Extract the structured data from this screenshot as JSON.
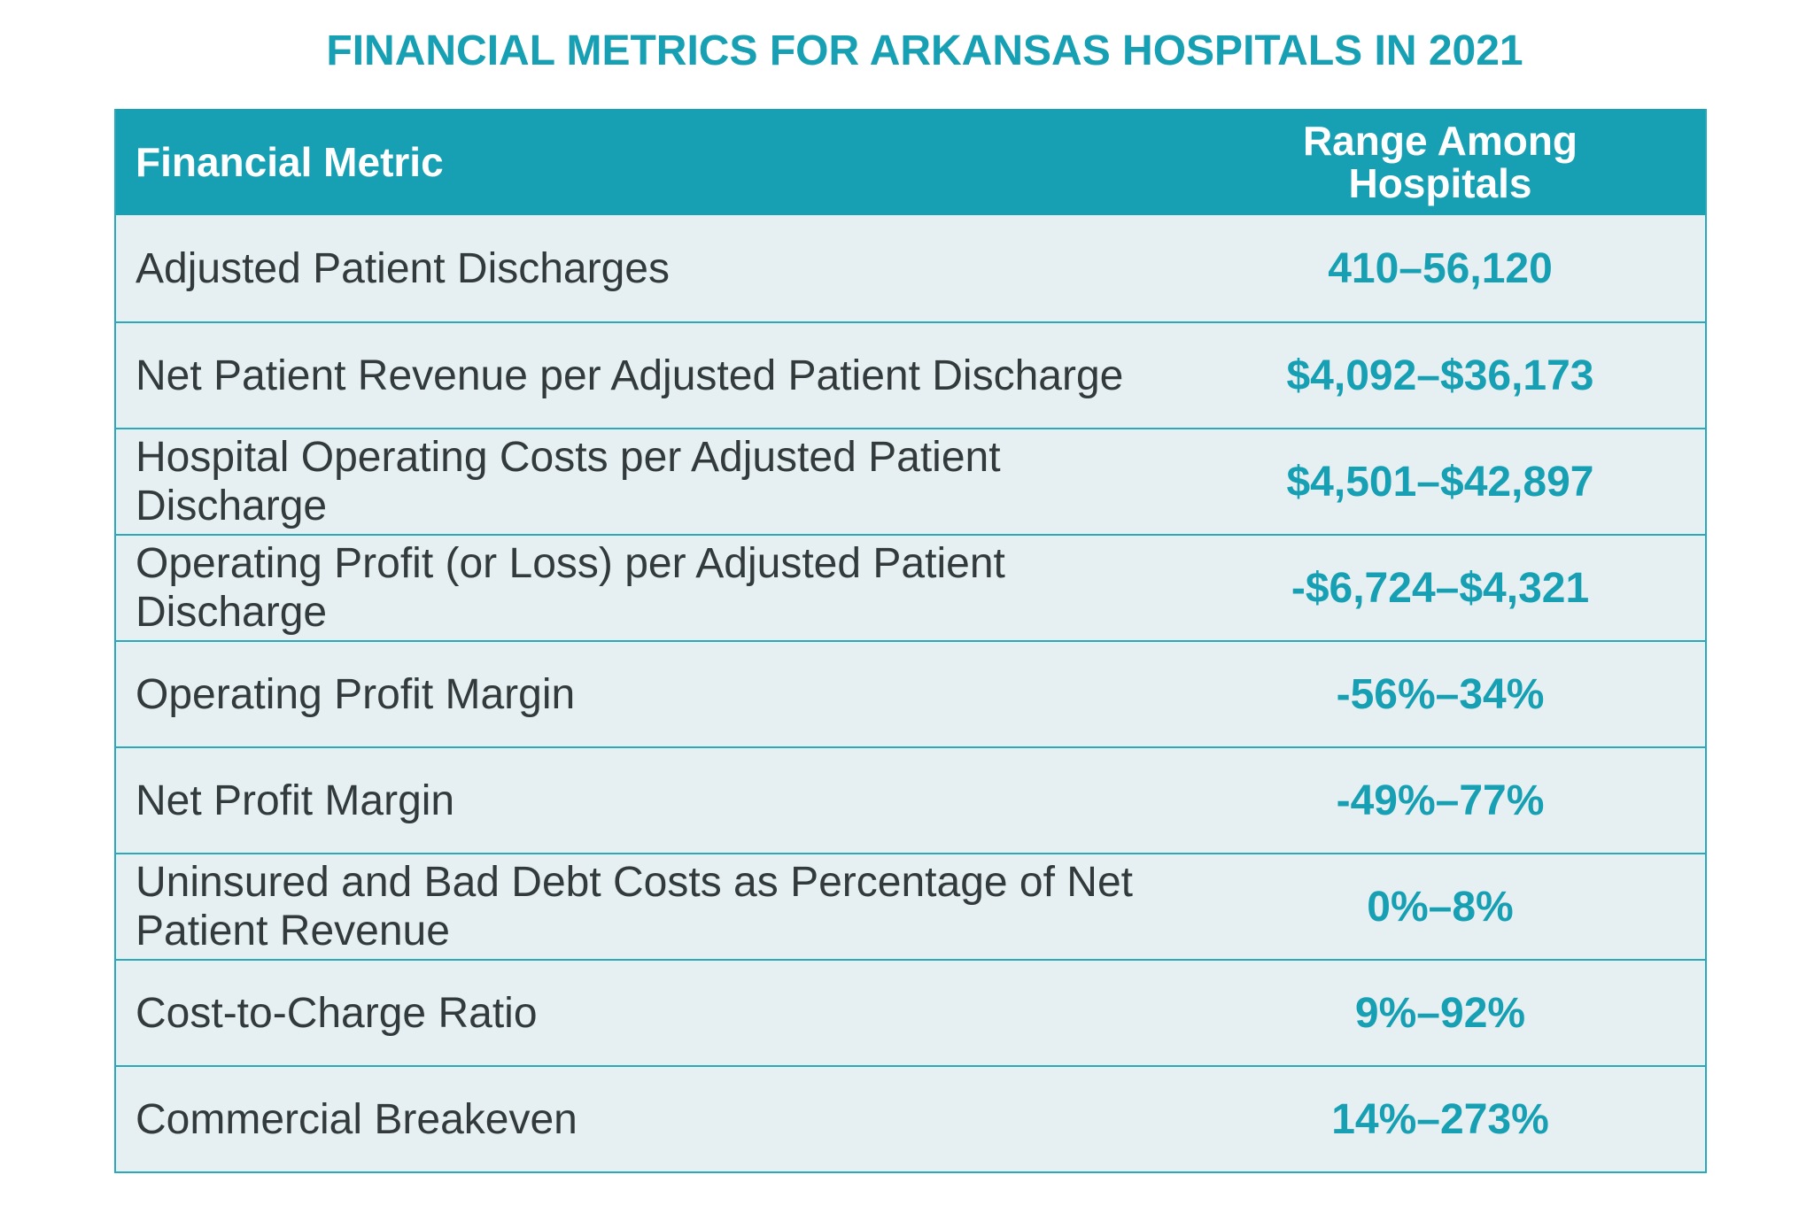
{
  "title": "FINANCIAL METRICS FOR ARKANSAS HOSPITALS IN 2021",
  "colors": {
    "accent": "#17a0b3",
    "row_background": "#e6eff2",
    "border": "#2aa9bc",
    "body_text": "#333a3b",
    "header_text": "#ffffff"
  },
  "table": {
    "headers": {
      "metric": {
        "lines": [
          "Financial Metric"
        ]
      },
      "range": {
        "lines": [
          "Range Among",
          "Hospitals"
        ]
      }
    },
    "rows": [
      {
        "metric": {
          "lines": [
            "Adjusted Patient Discharges"
          ]
        },
        "range": "410–56,120"
      },
      {
        "metric": {
          "lines": [
            "Net Patient Revenue per Adjusted Patient Discharge"
          ]
        },
        "range": "$4,092–$36,173"
      },
      {
        "metric": {
          "lines": [
            "Hospital Operating Costs per Adjusted Patient",
            "Discharge"
          ]
        },
        "range": "$4,501–$42,897"
      },
      {
        "metric": {
          "lines": [
            "Operating Profit (or Loss) per Adjusted Patient",
            "Discharge"
          ]
        },
        "range": "-$6,724–$4,321"
      },
      {
        "metric": {
          "lines": [
            "Operating Profit Margin"
          ]
        },
        "range": "-56%–34%"
      },
      {
        "metric": {
          "lines": [
            "Net Profit Margin"
          ]
        },
        "range": "-49%–77%"
      },
      {
        "metric": {
          "lines": [
            "Uninsured and Bad Debt Costs as Percentage of Net",
            "Patient Revenue"
          ]
        },
        "range": "0%–8%"
      },
      {
        "metric": {
          "lines": [
            "Cost-to-Charge Ratio"
          ]
        },
        "range": "9%–92%"
      },
      {
        "metric": {
          "lines": [
            "Commercial Breakeven"
          ]
        },
        "range": "14%–273%"
      }
    ]
  }
}
